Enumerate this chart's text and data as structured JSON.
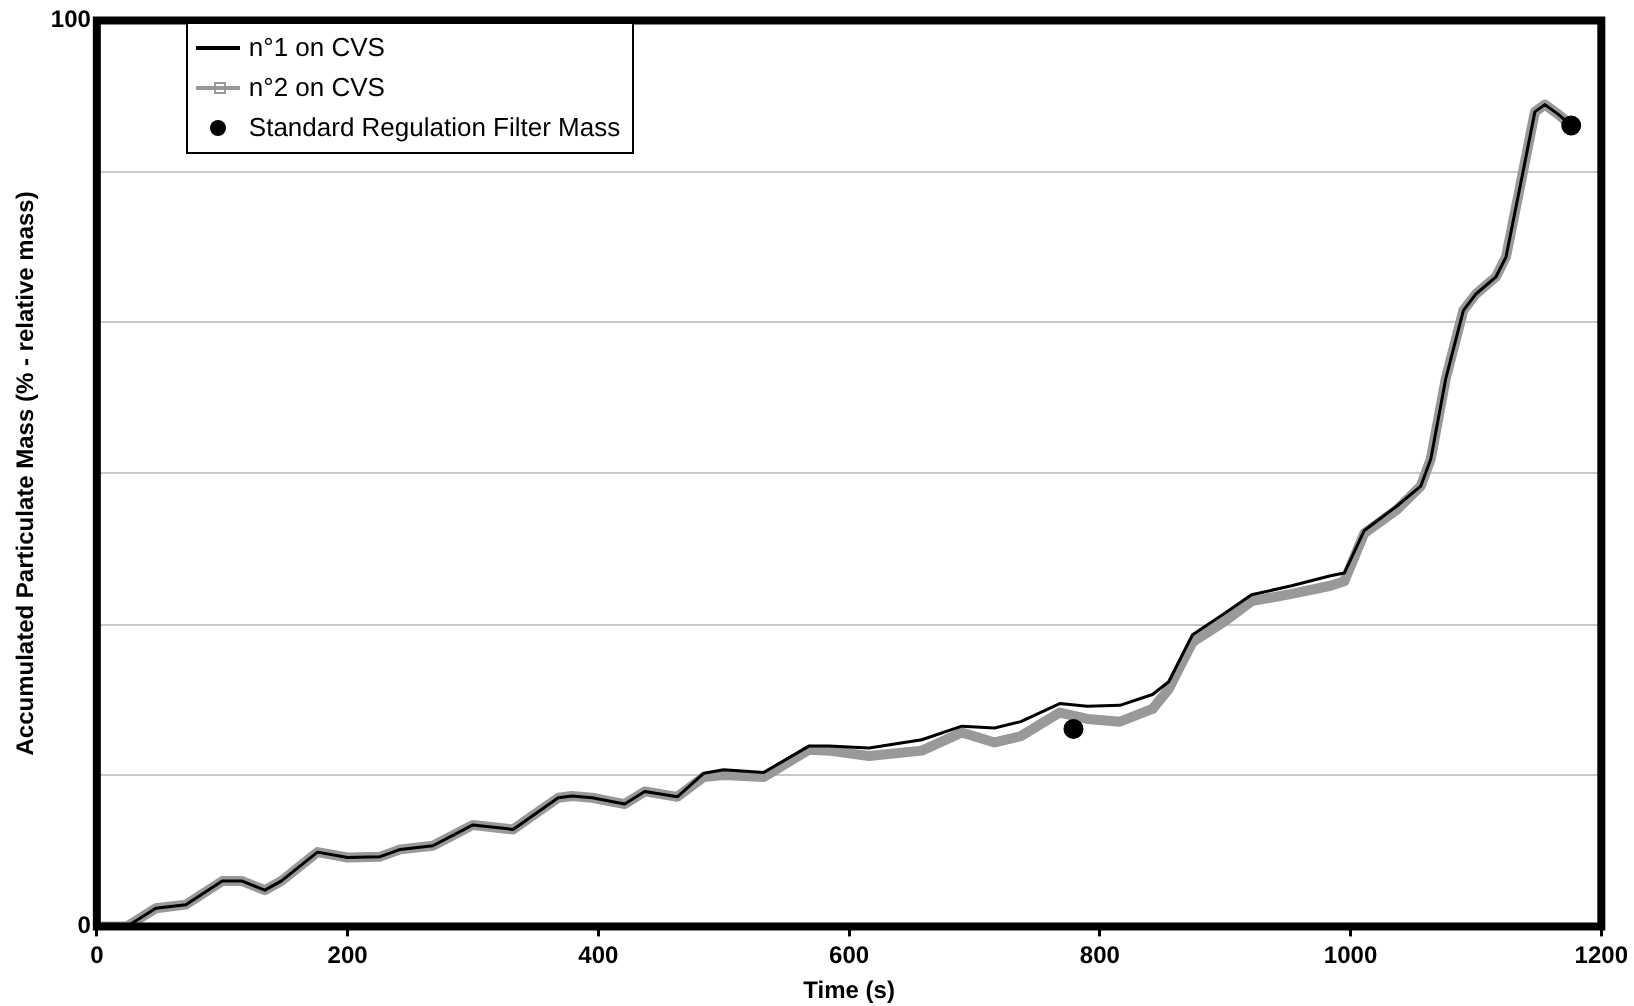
{
  "chart_data": {
    "type": "line",
    "xlabel": "Time (s)",
    "ylabel": "Accumulated Particulate Mass (% - relative mass)",
    "x": [
      0,
      24,
      47,
      71,
      100,
      116,
      134,
      147,
      176,
      200,
      226,
      242,
      268,
      300,
      332,
      368,
      379,
      395,
      421,
      437,
      463,
      484,
      500,
      532,
      568,
      584,
      616,
      658,
      690,
      716,
      737,
      768,
      790,
      816,
      842,
      855,
      874,
      900,
      921,
      953,
      984,
      995,
      1011,
      1037,
      1056,
      1064,
      1076,
      1090,
      1100,
      1116,
      1124,
      1137,
      1147,
      1155,
      1166,
      1176
    ],
    "series": [
      {
        "name": "n°1 on CVS",
        "color": "#000000",
        "marker": "none",
        "values": [
          0,
          0,
          2.0,
          2.4,
          5.0,
          5.0,
          4.0,
          5.0,
          8.2,
          7.6,
          7.7,
          8.5,
          8.9,
          11.2,
          10.7,
          14.2,
          14.4,
          14.2,
          13.5,
          14.9,
          14.3,
          16.9,
          17.3,
          17.0,
          19.9,
          19.9,
          19.7,
          20.6,
          22.1,
          21.9,
          22.6,
          24.6,
          24.3,
          24.4,
          25.6,
          27.0,
          32.2,
          34.6,
          36.6,
          37.6,
          38.7,
          39.0,
          43.7,
          46.4,
          48.6,
          51.6,
          60.5,
          68.0,
          69.8,
          71.7,
          73.9,
          82.9,
          89.9,
          90.7,
          89.6,
          88.4
        ]
      },
      {
        "name": "n°2 on CVS",
        "color": "#999999",
        "marker": "cross",
        "values": [
          0,
          0,
          2.0,
          2.4,
          5.0,
          5.0,
          4.0,
          5.0,
          8.2,
          7.6,
          7.7,
          8.5,
          8.9,
          11.2,
          10.7,
          14.2,
          14.4,
          14.2,
          13.5,
          14.9,
          14.3,
          16.5,
          16.7,
          16.5,
          19.5,
          19.4,
          18.8,
          19.4,
          21.4,
          20.3,
          21.0,
          23.6,
          22.9,
          22.6,
          24.0,
          26.2,
          31.4,
          33.7,
          35.9,
          36.7,
          37.6,
          38.1,
          43.4,
          46.0,
          48.6,
          51.6,
          60.5,
          68.0,
          69.8,
          71.7,
          73.9,
          82.9,
          89.9,
          90.7,
          89.6,
          88.4
        ]
      },
      {
        "name": "Standard Regulation Filter Mass",
        "type": "scatter",
        "color": "#000000",
        "marker": "circle",
        "x": [
          779,
          1176
        ],
        "values": [
          21.8,
          88.4
        ]
      }
    ],
    "xlim": [
      0,
      1200
    ],
    "xticks": [
      0,
      200,
      400,
      600,
      800,
      1000,
      1200
    ],
    "ylim": [
      0,
      100
    ],
    "yticks": [
      0,
      {
        "value": 16.7,
        "label": null
      },
      {
        "value": 33.3,
        "label": null
      },
      {
        "value": 50,
        "label": null
      },
      {
        "value": 66.7,
        "label": null
      },
      {
        "value": 83.3,
        "label": null
      },
      100
    ],
    "grid": "y",
    "legend": "top left"
  }
}
